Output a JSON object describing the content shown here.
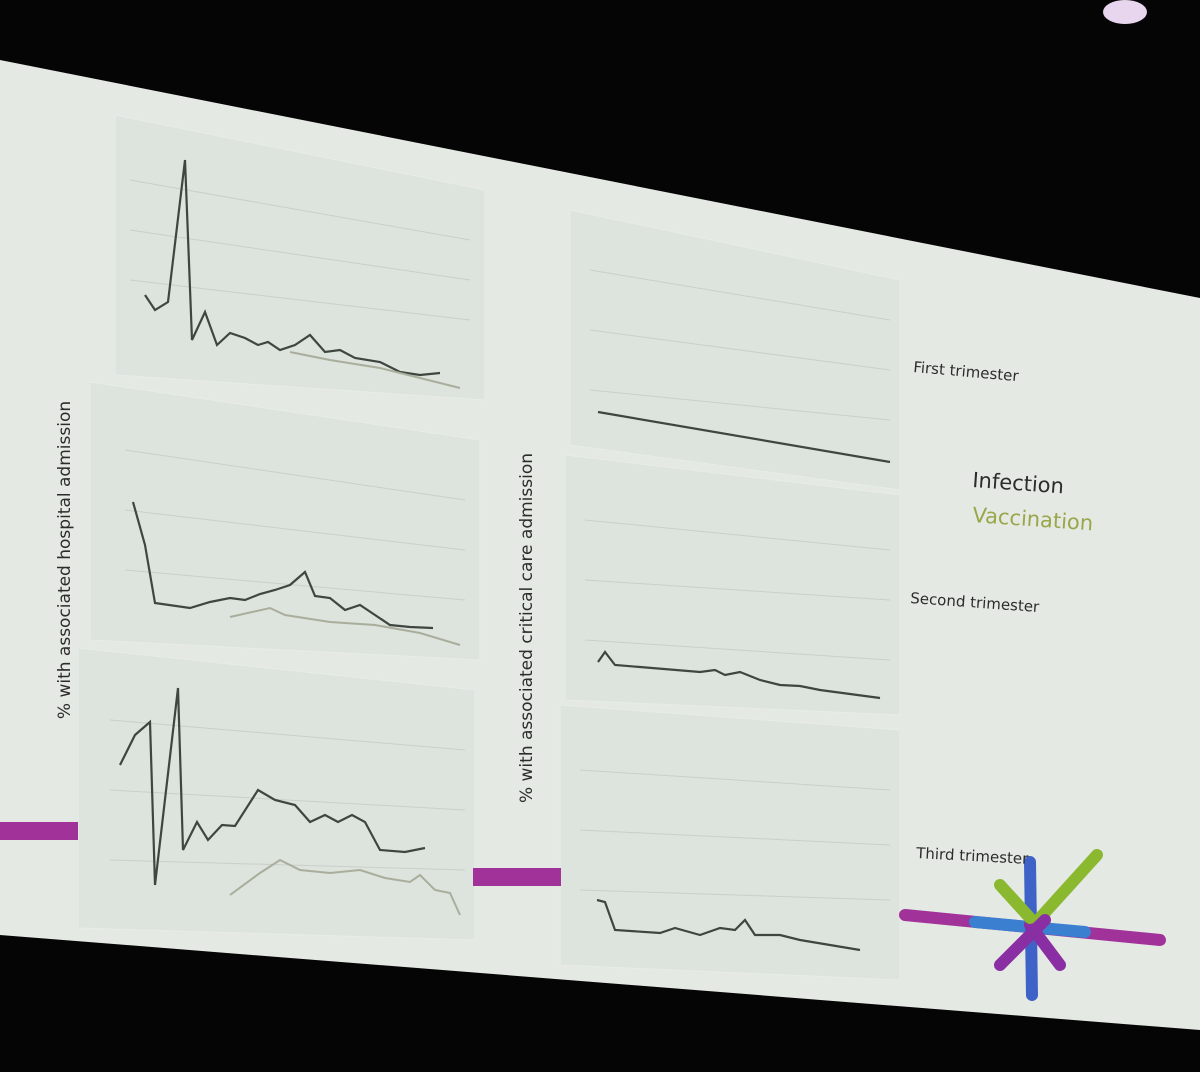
{
  "axis_labels": {
    "hospital": "% with associated hospital admission",
    "critical_care": "% with associated critical care admission"
  },
  "rows": [
    "First trimester",
    "Second trimester",
    "Third trimester"
  ],
  "legend": {
    "infection": "Infection",
    "vaccination": "Vaccination"
  }
}
